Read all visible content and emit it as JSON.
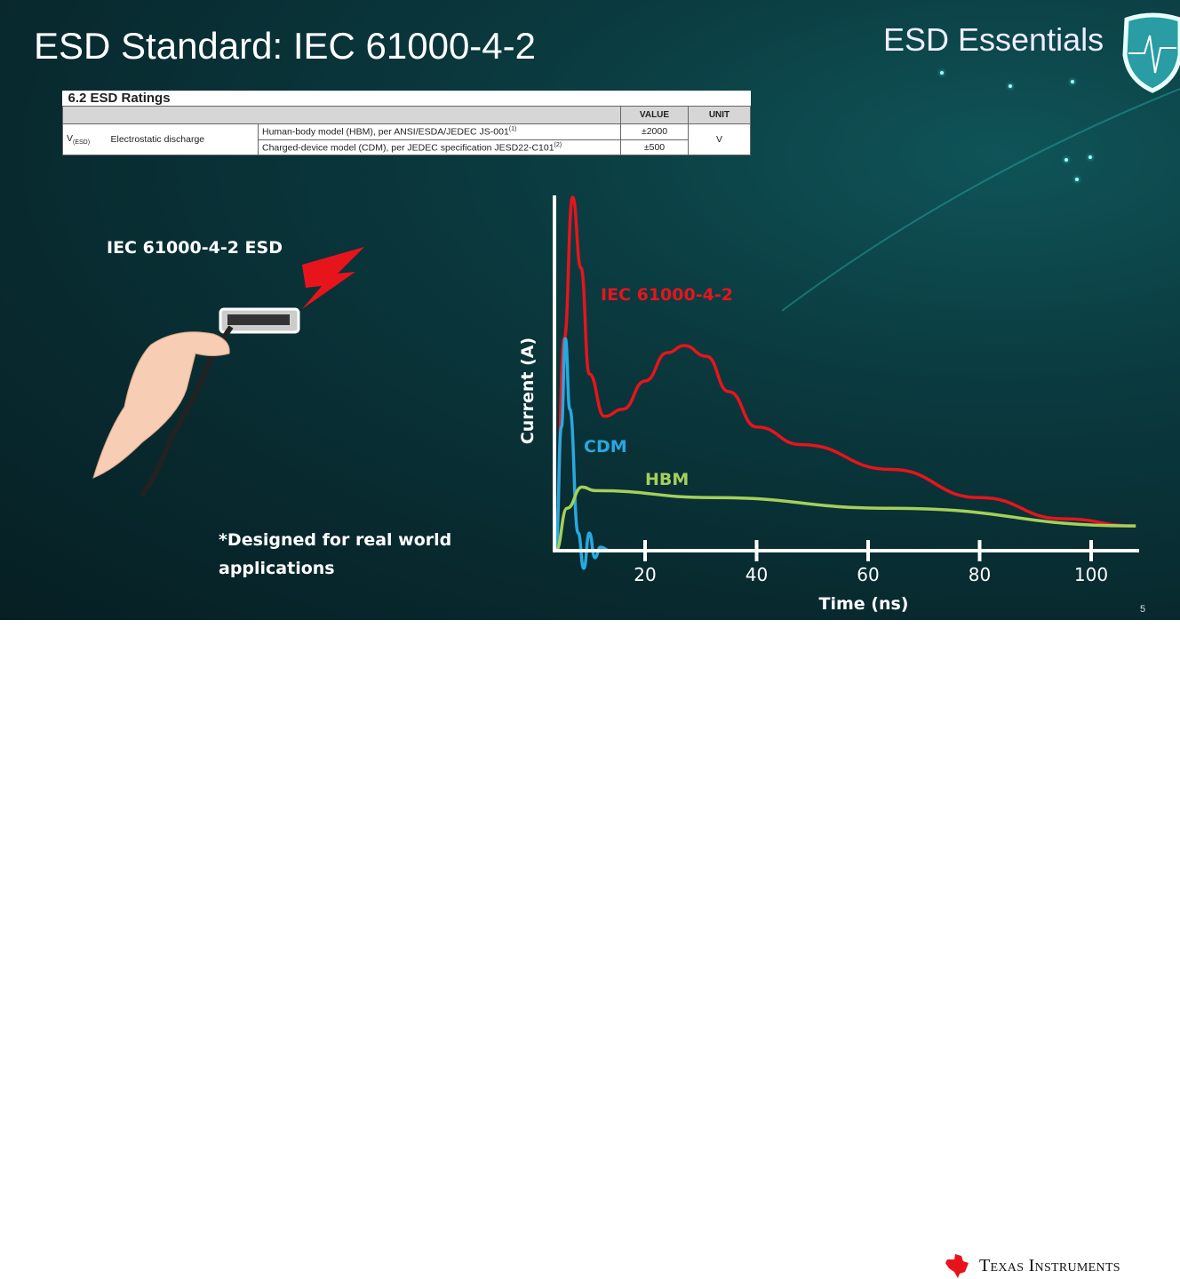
{
  "slide": {
    "title": "ESD Standard: IEC 61000-4-2",
    "brand": "ESD Essentials",
    "page_number": "5",
    "company": "Texas Instruments"
  },
  "table": {
    "caption": "6.2 ESD Ratings",
    "headers": [
      "VALUE",
      "UNIT"
    ],
    "symbol": "V",
    "symbol_sub": "(ESD)",
    "parameter": "Electrostatic discharge",
    "rows": [
      {
        "condition": "Human-body model (HBM), per ANSI/ESDA/JEDEC JS-001",
        "note": "(1)",
        "value": "±2000"
      },
      {
        "condition": "Charged-device model (CDM), per JEDEC specification JESD22-C101",
        "note": "(2)",
        "value": "±500"
      }
    ],
    "unit": "V"
  },
  "left": {
    "heading": "IEC 61000-4-2 ESD",
    "footnote_line1": "*Designed for real world",
    "footnote_line2": "applications"
  },
  "chart_data": {
    "type": "line",
    "xlabel": "Time (ns)",
    "ylabel": "Current (A)",
    "xlim": [
      4,
      108
    ],
    "xticks": [
      20,
      40,
      60,
      80,
      100
    ],
    "ylim": [
      -0.06,
      1.0
    ],
    "grid": false,
    "series": [
      {
        "name": "IEC 61000-4-2",
        "color": "#e8141c",
        "x": [
          4,
          5.5,
          7,
          8.5,
          10,
          12.7,
          16,
          20,
          24,
          27,
          31,
          35,
          40,
          48,
          64,
          80,
          95,
          108
        ],
        "y": [
          0.05,
          0.6,
          1.0,
          0.8,
          0.5,
          0.38,
          0.4,
          0.48,
          0.56,
          0.58,
          0.55,
          0.45,
          0.35,
          0.3,
          0.23,
          0.15,
          0.09,
          0.07
        ]
      },
      {
        "name": "CDM",
        "color": "#29a8e0",
        "x": [
          4,
          5,
          5.7,
          6.5,
          8,
          9,
          10,
          11,
          12,
          13.7
        ],
        "y": [
          0,
          0.35,
          0.6,
          0.4,
          0.05,
          -0.05,
          0.05,
          -0.02,
          0.01,
          0
        ]
      },
      {
        "name": "HBM",
        "color": "#a4d05a",
        "x": [
          4,
          6,
          8.7,
          11,
          32,
          64,
          108
        ],
        "y": [
          0,
          0.12,
          0.18,
          0.17,
          0.15,
          0.12,
          0.07
        ]
      }
    ]
  }
}
